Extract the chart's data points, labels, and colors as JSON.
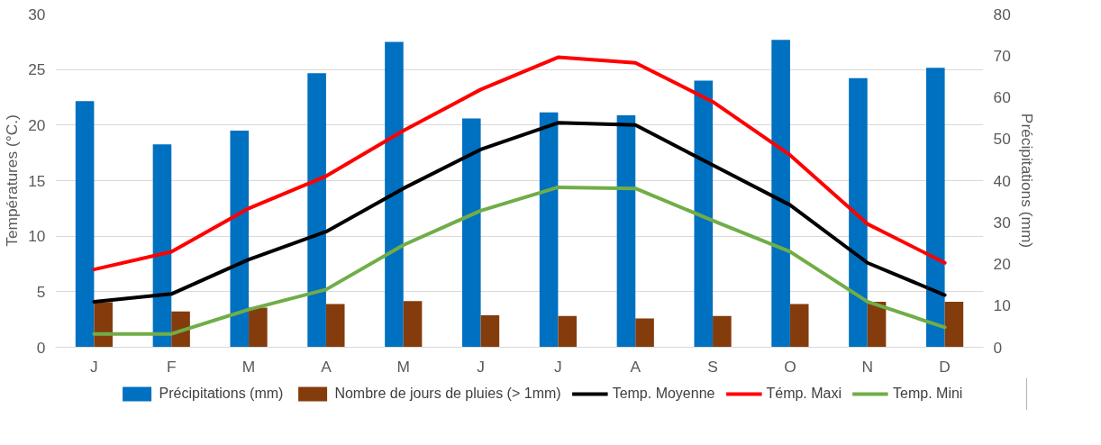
{
  "chart_data": {
    "type": "bar",
    "ylabel": "Températures (°C.)",
    "y2label": "Précipitations (mm)",
    "categories": [
      "J",
      "F",
      "M",
      "A",
      "M",
      "J",
      "J",
      "A",
      "S",
      "O",
      "N",
      "D"
    ],
    "ylim": [
      0,
      30
    ],
    "yticks": [
      0,
      5,
      10,
      15,
      20,
      25,
      30
    ],
    "y2lim": [
      0,
      80
    ],
    "y2ticks": [
      0,
      10,
      20,
      30,
      40,
      50,
      60,
      70,
      80
    ],
    "grid": "y",
    "legend": "bottom",
    "series": [
      {
        "name": "Précipitations (mm)",
        "axis": "y2",
        "color": "#0070c0",
        "values": [
          59.1,
          48.7,
          52,
          65.8,
          73.3,
          54.9,
          56.4,
          55.7,
          64,
          73.8,
          64.6,
          67.1
        ]
      },
      {
        "name": "Nombre de jours de pluies (> 1mm)",
        "axis": "y2",
        "color": "#843c0c",
        "values": [
          10.8,
          8.6,
          9.5,
          10.4,
          11.1,
          7.7,
          7.5,
          6.9,
          7.5,
          10.4,
          10.9,
          10.9
        ]
      },
      {
        "name": "Temp. Moyenne",
        "type": "line",
        "color": "#000000",
        "values": [
          4.1,
          4.8,
          7.9,
          10.4,
          14.3,
          17.8,
          20.2,
          20.0,
          16.4,
          12.8,
          7.6,
          4.7
        ]
      },
      {
        "name": "Témp. Maxi",
        "type": "line",
        "color": "#ff0000",
        "values": [
          7.0,
          8.6,
          12.5,
          15.4,
          19.5,
          23.2,
          26.1,
          25.6,
          22.1,
          17.3,
          11.1,
          7.6
        ]
      },
      {
        "name": "Temp. Mini",
        "type": "line",
        "color": "#70ad47",
        "values": [
          1.2,
          1.2,
          3.4,
          5.2,
          9.2,
          12.3,
          14.4,
          14.3,
          11.4,
          8.6,
          4.1,
          1.8
        ]
      }
    ]
  }
}
